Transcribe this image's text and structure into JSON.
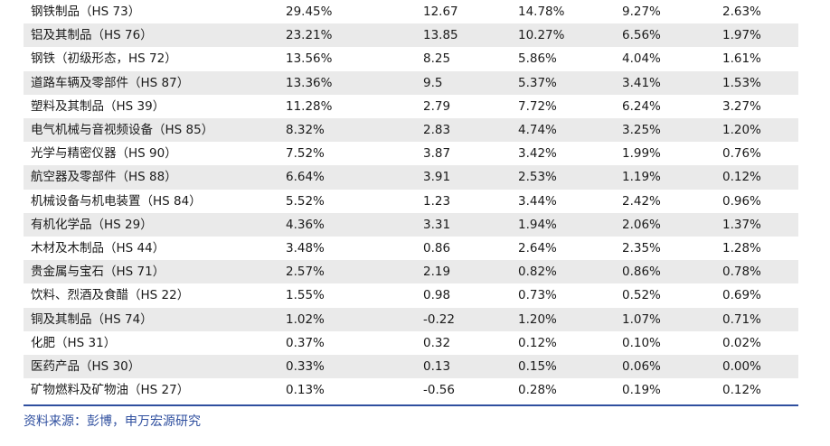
{
  "table": {
    "rows": [
      {
        "name": "钢铁制品（HS 73）",
        "v1": "29.45%",
        "v2": "12.67",
        "v3": "14.78%",
        "v4": "9.27%",
        "v5": "2.63%"
      },
      {
        "name": "铝及其制品（HS 76）",
        "v1": "23.21%",
        "v2": "13.85",
        "v3": "10.27%",
        "v4": "6.56%",
        "v5": "1.97%"
      },
      {
        "name": "钢铁（初级形态，HS 72）",
        "v1": "13.56%",
        "v2": "8.25",
        "v3": "5.86%",
        "v4": "4.04%",
        "v5": "1.61%"
      },
      {
        "name": "道路车辆及零部件（HS 87）",
        "v1": "13.36%",
        "v2": "9.5",
        "v3": "5.37%",
        "v4": "3.41%",
        "v5": "1.53%"
      },
      {
        "name": "塑料及其制品（HS 39）",
        "v1": "11.28%",
        "v2": "2.79",
        "v3": "7.72%",
        "v4": "6.24%",
        "v5": "3.27%"
      },
      {
        "name": "电气机械与音视频设备（HS 85）",
        "v1": "8.32%",
        "v2": "2.83",
        "v3": "4.74%",
        "v4": "3.25%",
        "v5": "1.20%"
      },
      {
        "name": "光学与精密仪器（HS 90）",
        "v1": "7.52%",
        "v2": "3.87",
        "v3": "3.42%",
        "v4": "1.99%",
        "v5": "0.76%"
      },
      {
        "name": "航空器及零部件（HS 88）",
        "v1": "6.64%",
        "v2": "3.91",
        "v3": "2.53%",
        "v4": "1.19%",
        "v5": "0.12%"
      },
      {
        "name": "机械设备与机电装置（HS 84）",
        "v1": "5.52%",
        "v2": "1.23",
        "v3": "3.44%",
        "v4": "2.42%",
        "v5": "0.96%"
      },
      {
        "name": "有机化学品（HS 29）",
        "v1": "4.36%",
        "v2": "3.31",
        "v3": "1.94%",
        "v4": "2.06%",
        "v5": "1.37%"
      },
      {
        "name": "木材及木制品（HS 44）",
        "v1": "3.48%",
        "v2": "0.86",
        "v3": "2.64%",
        "v4": "2.35%",
        "v5": "1.28%"
      },
      {
        "name": "贵金属与宝石（HS 71）",
        "v1": "2.57%",
        "v2": "2.19",
        "v3": "0.82%",
        "v4": "0.86%",
        "v5": "0.78%"
      },
      {
        "name": "饮料、烈酒及食醋（HS 22）",
        "v1": "1.55%",
        "v2": "0.98",
        "v3": "0.73%",
        "v4": "0.52%",
        "v5": "0.69%"
      },
      {
        "name": "铜及其制品（HS 74）",
        "v1": "1.02%",
        "v2": "-0.22",
        "v3": "1.20%",
        "v4": "1.07%",
        "v5": "0.71%"
      },
      {
        "name": "化肥（HS 31）",
        "v1": "0.37%",
        "v2": "0.32",
        "v3": "0.12%",
        "v4": "0.10%",
        "v5": "0.02%"
      },
      {
        "name": "医药产品（HS 30）",
        "v1": "0.33%",
        "v2": "0.13",
        "v3": "0.15%",
        "v4": "0.06%",
        "v5": "0.00%"
      },
      {
        "name": "矿物燃料及矿物油（HS 27）",
        "v1": "0.13%",
        "v2": "-0.56",
        "v3": "0.28%",
        "v4": "0.19%",
        "v5": "0.12%"
      }
    ]
  },
  "source": {
    "text": "资料来源：彭博，申万宏源研究"
  },
  "colors": {
    "accent": "#2f4f9f",
    "shade": "#eaeaea"
  }
}
